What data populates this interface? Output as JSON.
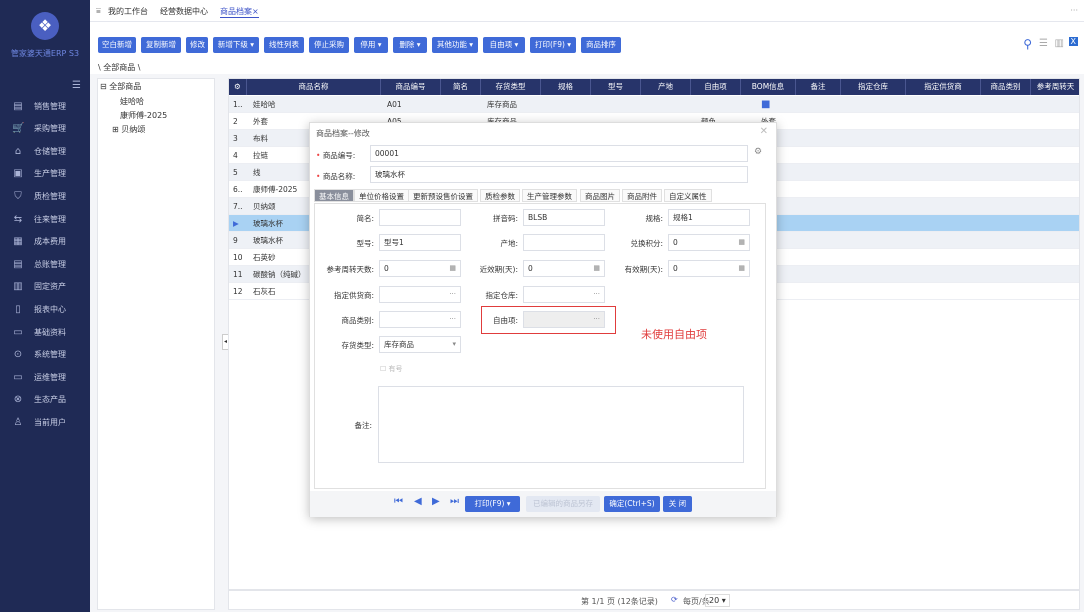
{
  "app": {
    "brand": "管家婆天通ERP S3",
    "logo_icon": "diamond-logo"
  },
  "sidebar": {
    "items": [
      {
        "label": "销售管理",
        "icon": "sales-icon",
        "glyph": "▤"
      },
      {
        "label": "采购管理",
        "icon": "cart-icon",
        "glyph": "🛒"
      },
      {
        "label": "仓储管理",
        "icon": "warehouse-icon",
        "glyph": "⌂"
      },
      {
        "label": "生产管理",
        "icon": "production-icon",
        "glyph": "▣"
      },
      {
        "label": "质检管理",
        "icon": "shield-icon",
        "glyph": "⛉"
      },
      {
        "label": "往来管理",
        "icon": "exchange-icon",
        "glyph": "⇆"
      },
      {
        "label": "成本费用",
        "icon": "cost-icon",
        "glyph": "▦"
      },
      {
        "label": "总账管理",
        "icon": "ledger-icon",
        "glyph": "▤"
      },
      {
        "label": "固定资产",
        "icon": "asset-icon",
        "glyph": "▥"
      },
      {
        "label": "报表中心",
        "icon": "report-icon",
        "glyph": "▯"
      },
      {
        "label": "基础资料",
        "icon": "basic-data-icon",
        "glyph": "▭"
      },
      {
        "label": "系统管理",
        "icon": "system-icon",
        "glyph": "⊙"
      },
      {
        "label": "运维管理",
        "icon": "monitor-icon",
        "glyph": "▭"
      },
      {
        "label": "生态产品",
        "icon": "eco-icon",
        "glyph": "⊗"
      },
      {
        "label": "当前用户",
        "icon": "user-icon",
        "glyph": "♙"
      }
    ]
  },
  "tabs": [
    {
      "label": "我的工作台"
    },
    {
      "label": "经营数据中心"
    },
    {
      "label": "商品档案×"
    }
  ],
  "toolbar": {
    "buttons": [
      "空白新增",
      "复制新增",
      "修改",
      "新增下级 ▾",
      "线性列表",
      "停止采购",
      "停用 ▾",
      "删除 ▾",
      "其他功能 ▾",
      "自由项 ▾",
      "打印(F9) ▾",
      "商品排序"
    ]
  },
  "breadcrumb": "\\ 全部商品 \\",
  "tree": {
    "root": "⊟ 全部商品",
    "children": [
      "娃哈哈",
      "康师傅-2025",
      "⊞ 贝纳颂"
    ]
  },
  "grid": {
    "columns": [
      "商品名称",
      "商品编号",
      "简名",
      "存货类型",
      "规格",
      "型号",
      "产地",
      "自由项",
      "BOM信息",
      "备注",
      "指定仓库",
      "指定供货商",
      "商品类别",
      "参考周转天"
    ],
    "rows": [
      {
        "no": "1..",
        "name": "娃哈哈",
        "code": "A01",
        "type": "库存商品",
        "free": "",
        "bom": "■"
      },
      {
        "no": "2",
        "name": "外套",
        "code": "A05",
        "type": "库存商品",
        "free": "颜色",
        "bom": "外套"
      },
      {
        "no": "3",
        "name": "布料"
      },
      {
        "no": "4",
        "name": "拉链"
      },
      {
        "no": "5",
        "name": "线"
      },
      {
        "no": "6..",
        "name": "康师傅-2025"
      },
      {
        "no": "7..",
        "name": "贝纳颂"
      },
      {
        "no": "▶",
        "name": "玻璃水杯"
      },
      {
        "no": "9",
        "name": "玻璃水杯"
      },
      {
        "no": "10",
        "name": "石英砂"
      },
      {
        "no": "11",
        "name": "碳酸钠（纯碱）"
      },
      {
        "no": "12",
        "name": "石灰石"
      }
    ]
  },
  "pager": {
    "text": "第 1/1 页 (12条记录)",
    "per_page_label": "每页/条",
    "per_page": "20 ▾"
  },
  "dialog": {
    "title": "商品档案--修改",
    "code_label": "商品编号:",
    "code": "00001",
    "name_label": "商品名称:",
    "name": "玻璃水杯",
    "tabs": [
      "基本信息",
      "单位价格设置",
      "更新预设售价设置",
      "质检参数",
      "生产管理参数",
      "商品图片",
      "商品附件",
      "自定义属性"
    ],
    "fields": {
      "short_label": "简名:",
      "short": "",
      "pinyin_label": "拼音码:",
      "pinyin": "BLSB",
      "spec_label": "规格:",
      "spec": "规格1",
      "model_label": "型号:",
      "model": "型号1",
      "origin_label": "产地:",
      "origin": "",
      "points_label": "兑换积分:",
      "points": "0",
      "turnover_label": "参考周转天数:",
      "turnover": "0",
      "near_label": "近效期(天):",
      "near": "0",
      "valid_label": "有效期(天):",
      "valid": "0",
      "supplier_label": "指定供货商:",
      "warehouse_label": "指定仓库:",
      "category_label": "商品类别:",
      "free_label": "自由项:",
      "stock_label": "存货类型:",
      "stock": "库存商品",
      "serial_label": "有号",
      "remark_label": "备注:"
    },
    "annotation": "未使用自由项",
    "buttons": {
      "print": "打印(F9) ▾",
      "disabled": "已编辑的商品另存",
      "ok": "确定(Ctrl+S)",
      "close": "关 闭"
    }
  }
}
